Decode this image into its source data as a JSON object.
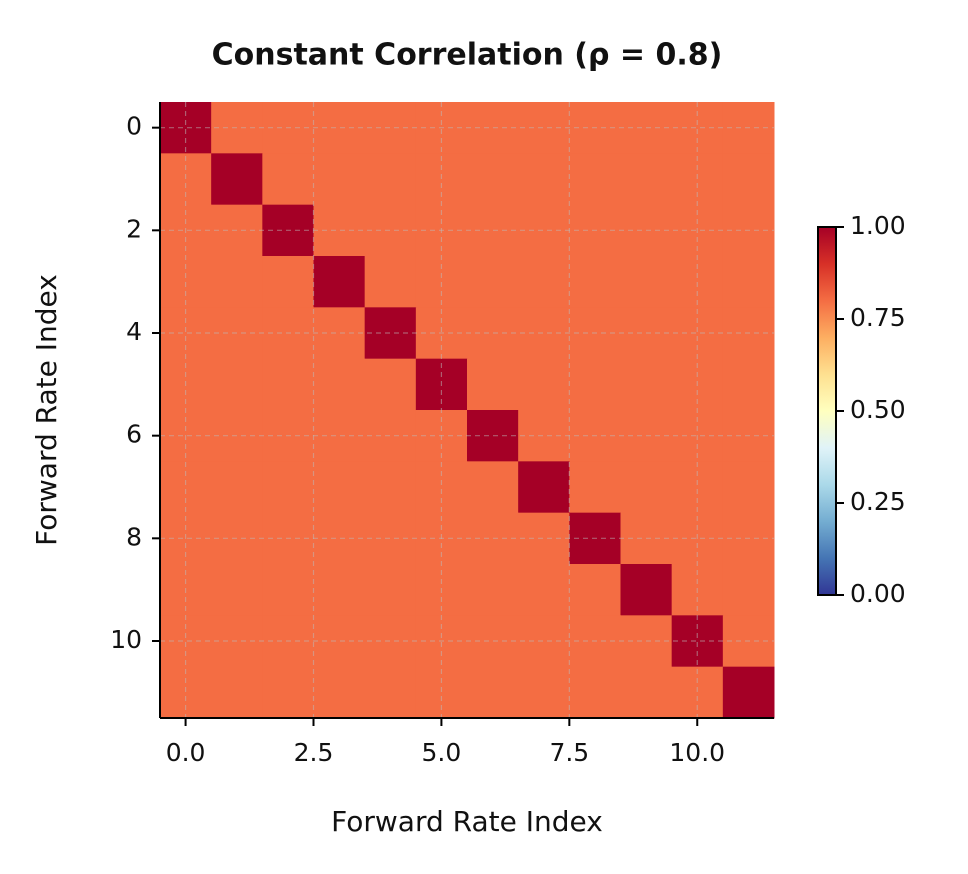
{
  "chart_data": {
    "type": "heatmap",
    "title": "Constant Correlation (ρ = 0.8)",
    "x_label": "Forward Rate Index",
    "y_label": "Forward Rate Index",
    "z": [
      [
        1,
        0.8,
        0.8,
        0.8,
        0.8,
        0.8,
        0.8,
        0.8,
        0.8,
        0.8,
        0.8,
        0.8
      ],
      [
        0.8,
        1,
        0.8,
        0.8,
        0.8,
        0.8,
        0.8,
        0.8,
        0.8,
        0.8,
        0.8,
        0.8
      ],
      [
        0.8,
        0.8,
        1,
        0.8,
        0.8,
        0.8,
        0.8,
        0.8,
        0.8,
        0.8,
        0.8,
        0.8
      ],
      [
        0.8,
        0.8,
        0.8,
        1,
        0.8,
        0.8,
        0.8,
        0.8,
        0.8,
        0.8,
        0.8,
        0.8
      ],
      [
        0.8,
        0.8,
        0.8,
        0.8,
        1,
        0.8,
        0.8,
        0.8,
        0.8,
        0.8,
        0.8,
        0.8
      ],
      [
        0.8,
        0.8,
        0.8,
        0.8,
        0.8,
        1,
        0.8,
        0.8,
        0.8,
        0.8,
        0.8,
        0.8
      ],
      [
        0.8,
        0.8,
        0.8,
        0.8,
        0.8,
        0.8,
        1,
        0.8,
        0.8,
        0.8,
        0.8,
        0.8
      ],
      [
        0.8,
        0.8,
        0.8,
        0.8,
        0.8,
        0.8,
        0.8,
        1,
        0.8,
        0.8,
        0.8,
        0.8
      ],
      [
        0.8,
        0.8,
        0.8,
        0.8,
        0.8,
        0.8,
        0.8,
        0.8,
        1,
        0.8,
        0.8,
        0.8
      ],
      [
        0.8,
        0.8,
        0.8,
        0.8,
        0.8,
        0.8,
        0.8,
        0.8,
        0.8,
        1,
        0.8,
        0.8
      ],
      [
        0.8,
        0.8,
        0.8,
        0.8,
        0.8,
        0.8,
        0.8,
        0.8,
        0.8,
        0.8,
        1,
        0.8
      ],
      [
        0.8,
        0.8,
        0.8,
        0.8,
        0.8,
        0.8,
        0.8,
        0.8,
        0.8,
        0.8,
        0.8,
        1
      ]
    ],
    "xlim": [
      -0.5,
      11.5
    ],
    "ylim": [
      11.5,
      -0.5
    ],
    "xticks": [
      {
        "value": 0,
        "label": "0.0"
      },
      {
        "value": 2.5,
        "label": "2.5"
      },
      {
        "value": 5,
        "label": "5.0"
      },
      {
        "value": 7.5,
        "label": "7.5"
      },
      {
        "value": 10,
        "label": "10.0"
      }
    ],
    "yticks": [
      0,
      2,
      4,
      6,
      8,
      10
    ],
    "grid": true,
    "colormap": [
      "#313695",
      "#4575b4",
      "#74add1",
      "#abd9e9",
      "#e0f3f8",
      "#ffffbf",
      "#fee090",
      "#fdae61",
      "#f46d43",
      "#d73027",
      "#a50026"
    ],
    "zlim": [
      0,
      1
    ],
    "colorbar_ticks": [
      {
        "value": 0,
        "label": "0.00"
      },
      {
        "value": 0.25,
        "label": "0.25"
      },
      {
        "value": 0.5,
        "label": "0.50"
      },
      {
        "value": 0.75,
        "label": "0.75"
      },
      {
        "value": 1,
        "label": "1.00"
      }
    ]
  }
}
